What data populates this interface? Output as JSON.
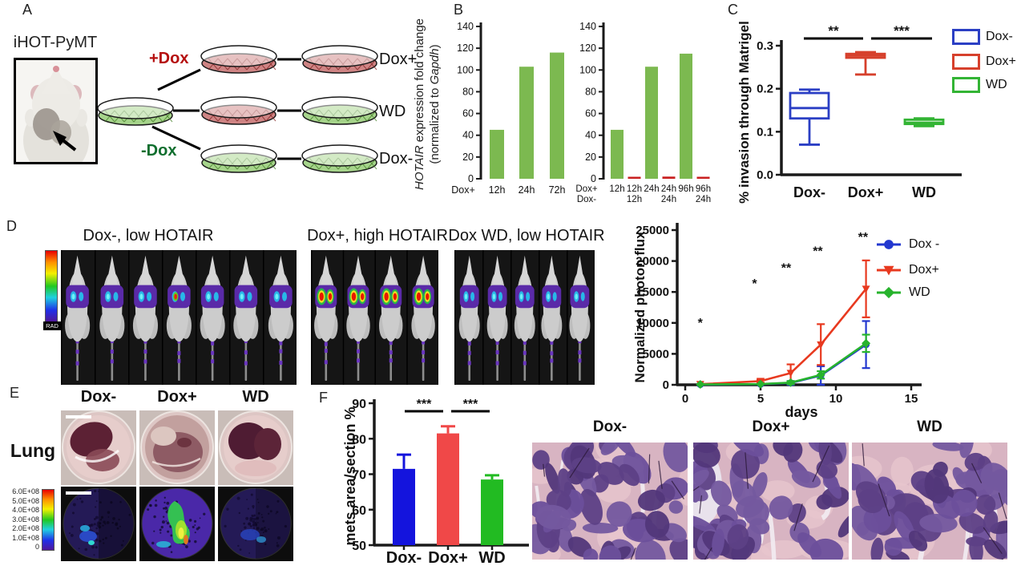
{
  "panels": {
    "A": {
      "label": "A",
      "photo_caption": "iHOT-PyMT",
      "plus_dox": "+Dox",
      "minus_dox": "-Dox",
      "rows": [
        {
          "label": "Dox+",
          "dishes": [
            "red",
            "red"
          ]
        },
        {
          "label": "WD",
          "dishes": [
            "red",
            "green"
          ]
        },
        {
          "label": "Dox-",
          "dishes": [
            "green",
            "green"
          ]
        }
      ],
      "colors": {
        "source_dish": "green",
        "red_media": "#cf8484",
        "green_media": "#a6d48b"
      }
    },
    "B": {
      "label": "B",
      "ylabel_italic1": "HOTAIR",
      "ylabel_rest1": " expression fold change",
      "ylabel_pre2": "(normalized to ",
      "ylabel_italic2": "Gapdh",
      "ylabel_post2": ")"
    },
    "C": {
      "label": "C",
      "legend": [
        {
          "label": "Dox-",
          "color": "#2b3fc4"
        },
        {
          "label": "Dox+",
          "color": "#d6402c"
        },
        {
          "label": "WD",
          "color": "#33b434"
        }
      ]
    },
    "D": {
      "label": "D",
      "groups": [
        {
          "title": "Dox-, low HOTAIR",
          "mice": 7,
          "signal": "low"
        },
        {
          "title": "Dox+, high HOTAIR",
          "mice": 4,
          "signal": "high"
        },
        {
          "title": "Dox WD, low HOTAIR",
          "mice": 5,
          "signal": "low"
        }
      ],
      "colorbar_label": "RAD",
      "legend": [
        {
          "label": "Dox -",
          "color": "#2338cf",
          "marker": "circle"
        },
        {
          "label": "Dox+",
          "color": "#e8391f",
          "marker": "triangle-down"
        },
        {
          "label": "WD",
          "color": "#27b32d",
          "marker": "diamond"
        }
      ]
    },
    "E": {
      "label": "E",
      "row_label": "Lung",
      "columns": [
        "Dox-",
        "Dox+",
        "WD"
      ],
      "scale_ticks": [
        "6.0E+08",
        "5.0E+08",
        "4.0E+08",
        "3.0E+08",
        "2.0E+08",
        "1.0E+08",
        "0"
      ]
    },
    "F": {
      "label": "F",
      "histology_columns": [
        "Dox-",
        "Dox+",
        "WD"
      ]
    }
  },
  "chart_data": [
    {
      "id": "B_left",
      "type": "bar",
      "ylabel": "HOTAIR expression fold change (normalized to Gapdh)",
      "ylim": [
        0,
        140
      ],
      "yticks": [
        0,
        20,
        40,
        60,
        80,
        100,
        120,
        140
      ],
      "x_prefix": "Dox+",
      "categories": [
        "12h",
        "24h",
        "72h"
      ],
      "values": [
        45,
        103,
        116
      ],
      "bar_color": "#7cb950"
    },
    {
      "id": "B_right",
      "type": "bar",
      "ylim": [
        0,
        140
      ],
      "yticks": [
        0,
        20,
        40,
        60,
        80,
        100,
        120,
        140
      ],
      "x_prefix_rows": [
        "Dox+",
        "Dox-"
      ],
      "categories_top": [
        "12h",
        "12h",
        "24h",
        "24h",
        "96h",
        "96h"
      ],
      "categories_bottom": [
        "",
        "12h",
        "",
        "24h",
        "",
        "24h"
      ],
      "values": [
        45,
        1,
        103,
        2,
        115,
        1
      ],
      "bar_colors": [
        "#7cb950",
        "#c92020",
        "#7cb950",
        "#c92020",
        "#7cb950",
        "#c92020"
      ]
    },
    {
      "id": "C",
      "type": "box",
      "ylabel": "% invasion through Matrigel",
      "ylim": [
        0.0,
        0.3
      ],
      "yticks": [
        0,
        0.1,
        0.2,
        0.3
      ],
      "ytick_labels": [
        "0.0",
        "0.1",
        "0.2",
        "0.3"
      ],
      "categories": [
        "Dox-",
        "Dox+",
        "WD"
      ],
      "boxes": [
        {
          "name": "Dox-",
          "color": "#2b3fc4",
          "whisker_low": 0.07,
          "q1": 0.131,
          "median": 0.155,
          "q3": 0.19,
          "whisker_high": 0.198
        },
        {
          "name": "Dox+",
          "color": "#d6402c",
          "whisker_low": 0.233,
          "q1": 0.272,
          "median": 0.277,
          "q3": 0.281,
          "whisker_high": 0.285
        },
        {
          "name": "WD",
          "color": "#33b434",
          "whisker_low": 0.113,
          "q1": 0.118,
          "median": 0.121,
          "q3": 0.128,
          "whisker_high": 0.131
        }
      ],
      "significance": [
        {
          "between": [
            "Dox-",
            "Dox+"
          ],
          "stars": "**"
        },
        {
          "between": [
            "Dox+",
            "WD"
          ],
          "stars": "***"
        }
      ]
    },
    {
      "id": "D",
      "type": "line",
      "ylabel": "Normalized photon flux",
      "xlabel": "days",
      "ylim": [
        0,
        25000
      ],
      "yticks": [
        0,
        5000,
        10000,
        15000,
        20000,
        25000
      ],
      "xlim": [
        0,
        15
      ],
      "xticks": [
        0,
        5,
        10,
        15
      ],
      "x": [
        1,
        5,
        7,
        9,
        12
      ],
      "series": [
        {
          "name": "Dox -",
          "color": "#2338cf",
          "marker": "circle",
          "values": [
            50,
            100,
            300,
            1500,
            6500
          ],
          "err": [
            50,
            100,
            300,
            1500,
            3800
          ]
        },
        {
          "name": "Dox+",
          "color": "#e8391f",
          "marker": "triangle-down",
          "values": [
            100,
            600,
            1900,
            6500,
            15500
          ],
          "err": [
            80,
            250,
            1400,
            3300,
            4600
          ]
        },
        {
          "name": "WD",
          "color": "#27b32d",
          "marker": "diamond",
          "values": [
            60,
            120,
            350,
            1600,
            6700
          ],
          "err": [
            40,
            80,
            250,
            600,
            1400
          ]
        }
      ],
      "annotations": [
        {
          "x": 1,
          "y": 9300,
          "text": "*"
        },
        {
          "x": 4.6,
          "y": 15700,
          "text": "*"
        },
        {
          "x": 6.7,
          "y": 18200,
          "text": "**"
        },
        {
          "x": 8.8,
          "y": 20900,
          "text": "**"
        },
        {
          "x": 11.8,
          "y": 23200,
          "text": "**"
        }
      ]
    },
    {
      "id": "F",
      "type": "bar",
      "ylabel": "mets area/section %",
      "ylim": [
        50,
        90
      ],
      "yticks": [
        50,
        60,
        70,
        80,
        90
      ],
      "categories": [
        "Dox-",
        "Dox+",
        "WD"
      ],
      "values": [
        71.5,
        81.5,
        68.5
      ],
      "errors": [
        4.0,
        2.0,
        1.2
      ],
      "colors": [
        "#1414dd",
        "#f04848",
        "#22bb22"
      ],
      "significance": [
        {
          "between": [
            "Dox-",
            "Dox+"
          ],
          "stars": "***"
        },
        {
          "between": [
            "Dox+",
            "WD"
          ],
          "stars": "***"
        }
      ]
    }
  ]
}
